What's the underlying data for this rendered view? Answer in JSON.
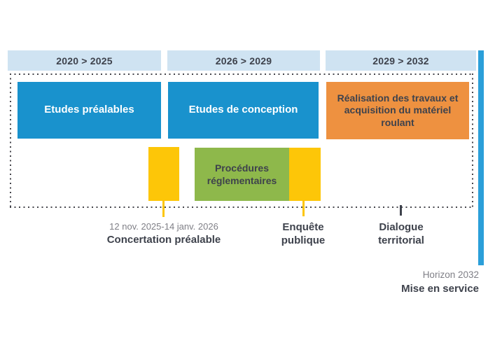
{
  "timeline": {
    "periods": [
      {
        "label": "2020 > 2025"
      },
      {
        "label": "2026 > 2029"
      },
      {
        "label": "2029 > 2032"
      }
    ],
    "phases": [
      {
        "label": "Etudes préalables",
        "color": "#1992cd"
      },
      {
        "label": "Etudes de conception",
        "color": "#1992cd"
      },
      {
        "label": "Réalisation des travaux et acquisition du matériel roulant",
        "color": "#ee9140"
      }
    ],
    "sub_phase": {
      "label": "Procédures réglementaires",
      "color": "#8eb84b"
    },
    "milestones": [
      {
        "date": "12 nov. 2025-14 janv. 2026",
        "label": "Concertation préalable",
        "marker_color": "#fdc608"
      },
      {
        "date": "",
        "label": "Enquête publique",
        "marker_color": "#fdc608"
      },
      {
        "date": "",
        "label": "Dialogue territorial",
        "marker_color": "#3e424c"
      }
    ],
    "horizon": {
      "date": "Horizon 2032",
      "label": "Mise en service"
    },
    "colors": {
      "period_bg": "#cfe3f2",
      "phase_blue": "#1992cd",
      "phase_orange": "#ee9140",
      "sub_phase_green": "#8eb84b",
      "marker_yellow": "#fdc608",
      "accent_bar_blue": "#2b9fd9",
      "text_dark": "#3e424c",
      "text_gray": "#7f7f86"
    }
  }
}
